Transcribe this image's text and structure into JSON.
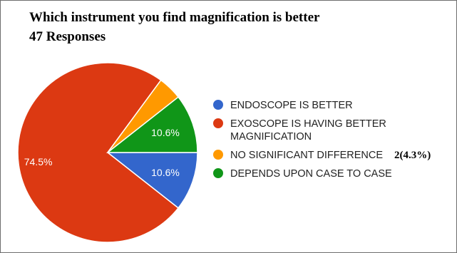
{
  "chart_data": {
    "type": "pie",
    "title": "Which instrument you find magnification is better",
    "subtitle": "47 Responses",
    "legend_placement": "right",
    "slices": [
      {
        "legend": "ENDOSCOPE IS BETTER",
        "legend_line2": "",
        "value": 10.6,
        "label": "10.6%",
        "color": "#3366cc"
      },
      {
        "legend": "EXOSCOPE IS HAVING BETTER",
        "legend_line2": "MAGNIFICATION",
        "value": 74.5,
        "label": "74.5%",
        "color": "#dc3912"
      },
      {
        "legend": "NO SIGNIFICANT DIFFERENCE",
        "legend_line2": "",
        "value": 4.3,
        "label": "",
        "color": "#ff9900"
      },
      {
        "legend": "DEPENDS UPON CASE TO CASE",
        "legend_line2": "",
        "value": 10.6,
        "label": "10.6%",
        "color": "#109618"
      }
    ],
    "annotation": "2(4.3%)"
  }
}
